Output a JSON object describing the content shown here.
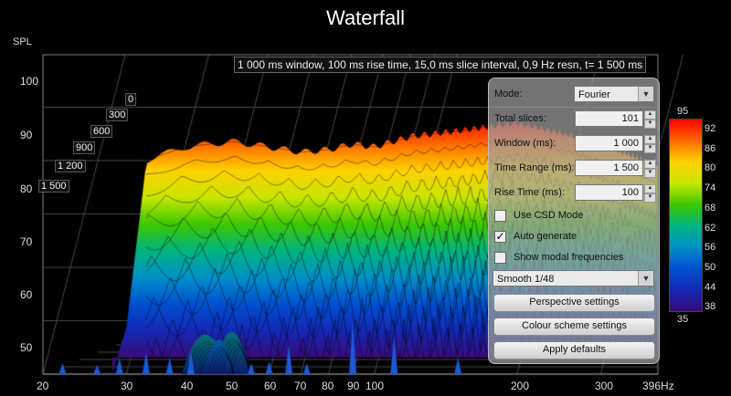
{
  "window_title": "Waterfall",
  "y_axis": {
    "label": "SPL",
    "ticks": [
      "100",
      "90",
      "80",
      "70",
      "60",
      "50"
    ]
  },
  "x_axis": {
    "ticks": [
      "20",
      "30",
      "40",
      "50",
      "60",
      "70",
      "80",
      "90",
      "100",
      "200",
      "300",
      "396Hz"
    ]
  },
  "time_labels": [
    "0",
    "300",
    "600",
    "900",
    "1 200",
    "1 500"
  ],
  "info_text": "1 000 ms window, 100 ms rise time, 15,0 ms slice interval, 0,9 Hz resn, t= 1 500 ms",
  "panel": {
    "mode_label": "Mode:",
    "mode_value": "Fourier",
    "total_slices_label": "Total slices:",
    "total_slices_value": "101",
    "window_label": "Window (ms):",
    "window_value": "1 000",
    "time_range_label": "Time Range (ms):",
    "time_range_value": "1 500",
    "rise_time_label": "Rise Time (ms):",
    "rise_time_value": "100",
    "use_csd_label": "Use CSD Mode",
    "use_csd_checked": false,
    "auto_generate_label": "Auto generate",
    "auto_generate_checked": true,
    "show_modal_label": "Show modal frequencies",
    "show_modal_checked": false,
    "smoothing_value": "Smooth 1/48",
    "perspective_button": "Perspective settings",
    "colour_scheme_button": "Colour scheme settings",
    "apply_defaults_button": "Apply defaults",
    "checkmark": "✓",
    "arrow_down": "▼",
    "arrow_up": "▲"
  },
  "colour_scale": {
    "top": "95",
    "bottom": "35",
    "labels": [
      "92",
      "86",
      "80",
      "74",
      "68",
      "62",
      "56",
      "50",
      "44",
      "38"
    ],
    "colors": [
      "#ff0000",
      "#ff6a00",
      "#ffd200",
      "#c8e600",
      "#3cc800",
      "#00b480",
      "#0090c8",
      "#0050d0",
      "#1428b4",
      "#3a0a7a"
    ]
  },
  "chart_data": {
    "type": "area",
    "title": "Waterfall",
    "ylabel": "SPL",
    "xlabel": "Hz",
    "x_scale": "log",
    "xlim": [
      20,
      396
    ],
    "ylim": [
      45,
      100
    ],
    "series": [
      {
        "name": "0",
        "x": [
          20,
          25,
          28,
          30,
          33,
          40,
          50,
          60,
          70,
          80,
          90,
          100,
          120,
          150,
          200,
          250,
          300,
          396
        ],
        "values": [
          45,
          45,
          47,
          55,
          87,
          89.5,
          90.5,
          89.5,
          88.5,
          89,
          90,
          89.5,
          91.5,
          92.5,
          94,
          92,
          90,
          86
        ]
      }
    ]
  }
}
